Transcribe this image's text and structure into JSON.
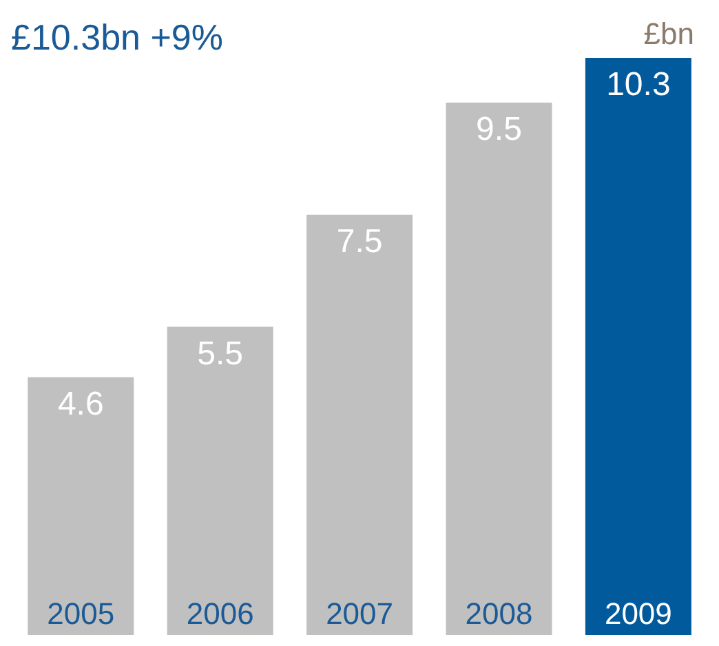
{
  "chart_data": {
    "type": "bar",
    "title": "£10.3bn +9%",
    "ylabel": "£bn",
    "categories": [
      "2005",
      "2006",
      "2007",
      "2008",
      "2009"
    ],
    "values": [
      4.6,
      5.5,
      7.5,
      9.5,
      10.3
    ],
    "colors": [
      "#c0c0c0",
      "#c0c0c0",
      "#c0c0c0",
      "#c0c0c0",
      "#005a9c"
    ],
    "data_labels": true
  }
}
